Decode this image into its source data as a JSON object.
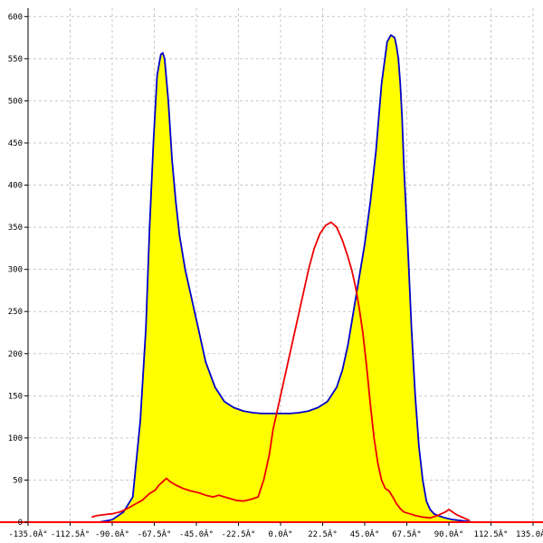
{
  "chart_data": {
    "type": "area",
    "title": "",
    "xlabel": "",
    "ylabel": "",
    "xlim": [
      -135,
      135
    ],
    "ylim": [
      0,
      610
    ],
    "grid": true,
    "x_ticks": [
      -135,
      -112.5,
      -90,
      -67.5,
      -45,
      -22.5,
      0,
      22.5,
      45,
      67.5,
      90,
      112.5,
      135
    ],
    "x_tick_labels": [
      "-135.0Â°",
      "-112.5Â°",
      "-90.0Â°",
      "-67.5Â°",
      "-45.0Â°",
      "-22.5Â°",
      "0.0Â°",
      "22.5Â°",
      "45.0Â°",
      "67.5Â°",
      "90.0Â°",
      "112.5Â°",
      "135.0Â°"
    ],
    "y_ticks": [
      0,
      50,
      100,
      150,
      200,
      250,
      300,
      350,
      400,
      450,
      500,
      550,
      600
    ],
    "y_tick_labels": [
      "0",
      "50",
      "100",
      "150",
      "200",
      "250",
      "300",
      "350",
      "400",
      "450",
      "500",
      "550",
      "600"
    ],
    "colors": {
      "fill": "#ffff00",
      "blue_line": "#0000cc",
      "red_line": "#ee0000",
      "axis": "#000000",
      "grid": "#c8c8c8",
      "baseline": "#ff0000"
    },
    "series": [
      {
        "color": "#0000cc",
        "filled": true,
        "x": [
          -97,
          -90,
          -84,
          -79,
          -75,
          -72,
          -70,
          -68,
          -66,
          -64,
          -63,
          -62,
          -60,
          -58,
          -56,
          -54,
          -51,
          -48,
          -44,
          -40,
          -35,
          -30,
          -25,
          -20,
          -15,
          -10,
          -5,
          0,
          5,
          10,
          15,
          20,
          25,
          30,
          33,
          36,
          39,
          42,
          45,
          48,
          51,
          54,
          57,
          59,
          61,
          62,
          63,
          64,
          65,
          66,
          68,
          70,
          72,
          74,
          76,
          78,
          80,
          82,
          84,
          88,
          92,
          96,
          100,
          103
        ],
        "y": [
          0,
          3,
          12,
          30,
          120,
          230,
          350,
          450,
          530,
          555,
          557,
          550,
          500,
          430,
          380,
          340,
          300,
          270,
          230,
          190,
          160,
          143,
          136,
          132,
          130,
          129,
          129,
          129,
          129,
          130,
          132,
          136,
          143,
          160,
          180,
          210,
          250,
          290,
          330,
          380,
          440,
          520,
          570,
          578,
          575,
          565,
          550,
          520,
          480,
          420,
          330,
          230,
          150,
          90,
          50,
          25,
          15,
          10,
          8,
          5,
          3,
          2,
          1,
          0
        ]
      },
      {
        "color": "#ee0000",
        "filled": false,
        "x": [
          -101,
          -98,
          -94,
          -90,
          -86,
          -82,
          -78,
          -74,
          -72,
          -70,
          -67,
          -65,
          -63,
          -61,
          -59,
          -56,
          -52,
          -48,
          -44,
          -40,
          -36,
          -33,
          -30,
          -27,
          -24,
          -20,
          -16,
          -12,
          -9,
          -6,
          -4,
          -2,
          0,
          3,
          6,
          9,
          12,
          15,
          18,
          21,
          24,
          27,
          30,
          33,
          36,
          38,
          40,
          42,
          44,
          46,
          48,
          50,
          52,
          54,
          56,
          58,
          60,
          62,
          64,
          66,
          69,
          72,
          76,
          80,
          84,
          88,
          90,
          92,
          94,
          96,
          98,
          100,
          101
        ],
        "y": [
          6,
          8,
          9,
          10,
          12,
          16,
          21,
          26,
          30,
          34,
          38,
          44,
          48,
          52,
          48,
          44,
          40,
          37,
          35,
          32,
          30,
          32,
          30,
          28,
          26,
          25,
          27,
          30,
          50,
          80,
          110,
          130,
          150,
          180,
          210,
          240,
          270,
          300,
          325,
          342,
          352,
          356,
          350,
          335,
          315,
          300,
          280,
          255,
          225,
          185,
          140,
          100,
          70,
          50,
          40,
          37,
          30,
          22,
          16,
          12,
          10,
          8,
          6,
          5,
          8,
          12,
          15,
          12,
          9,
          7,
          5,
          3,
          2
        ]
      }
    ]
  }
}
